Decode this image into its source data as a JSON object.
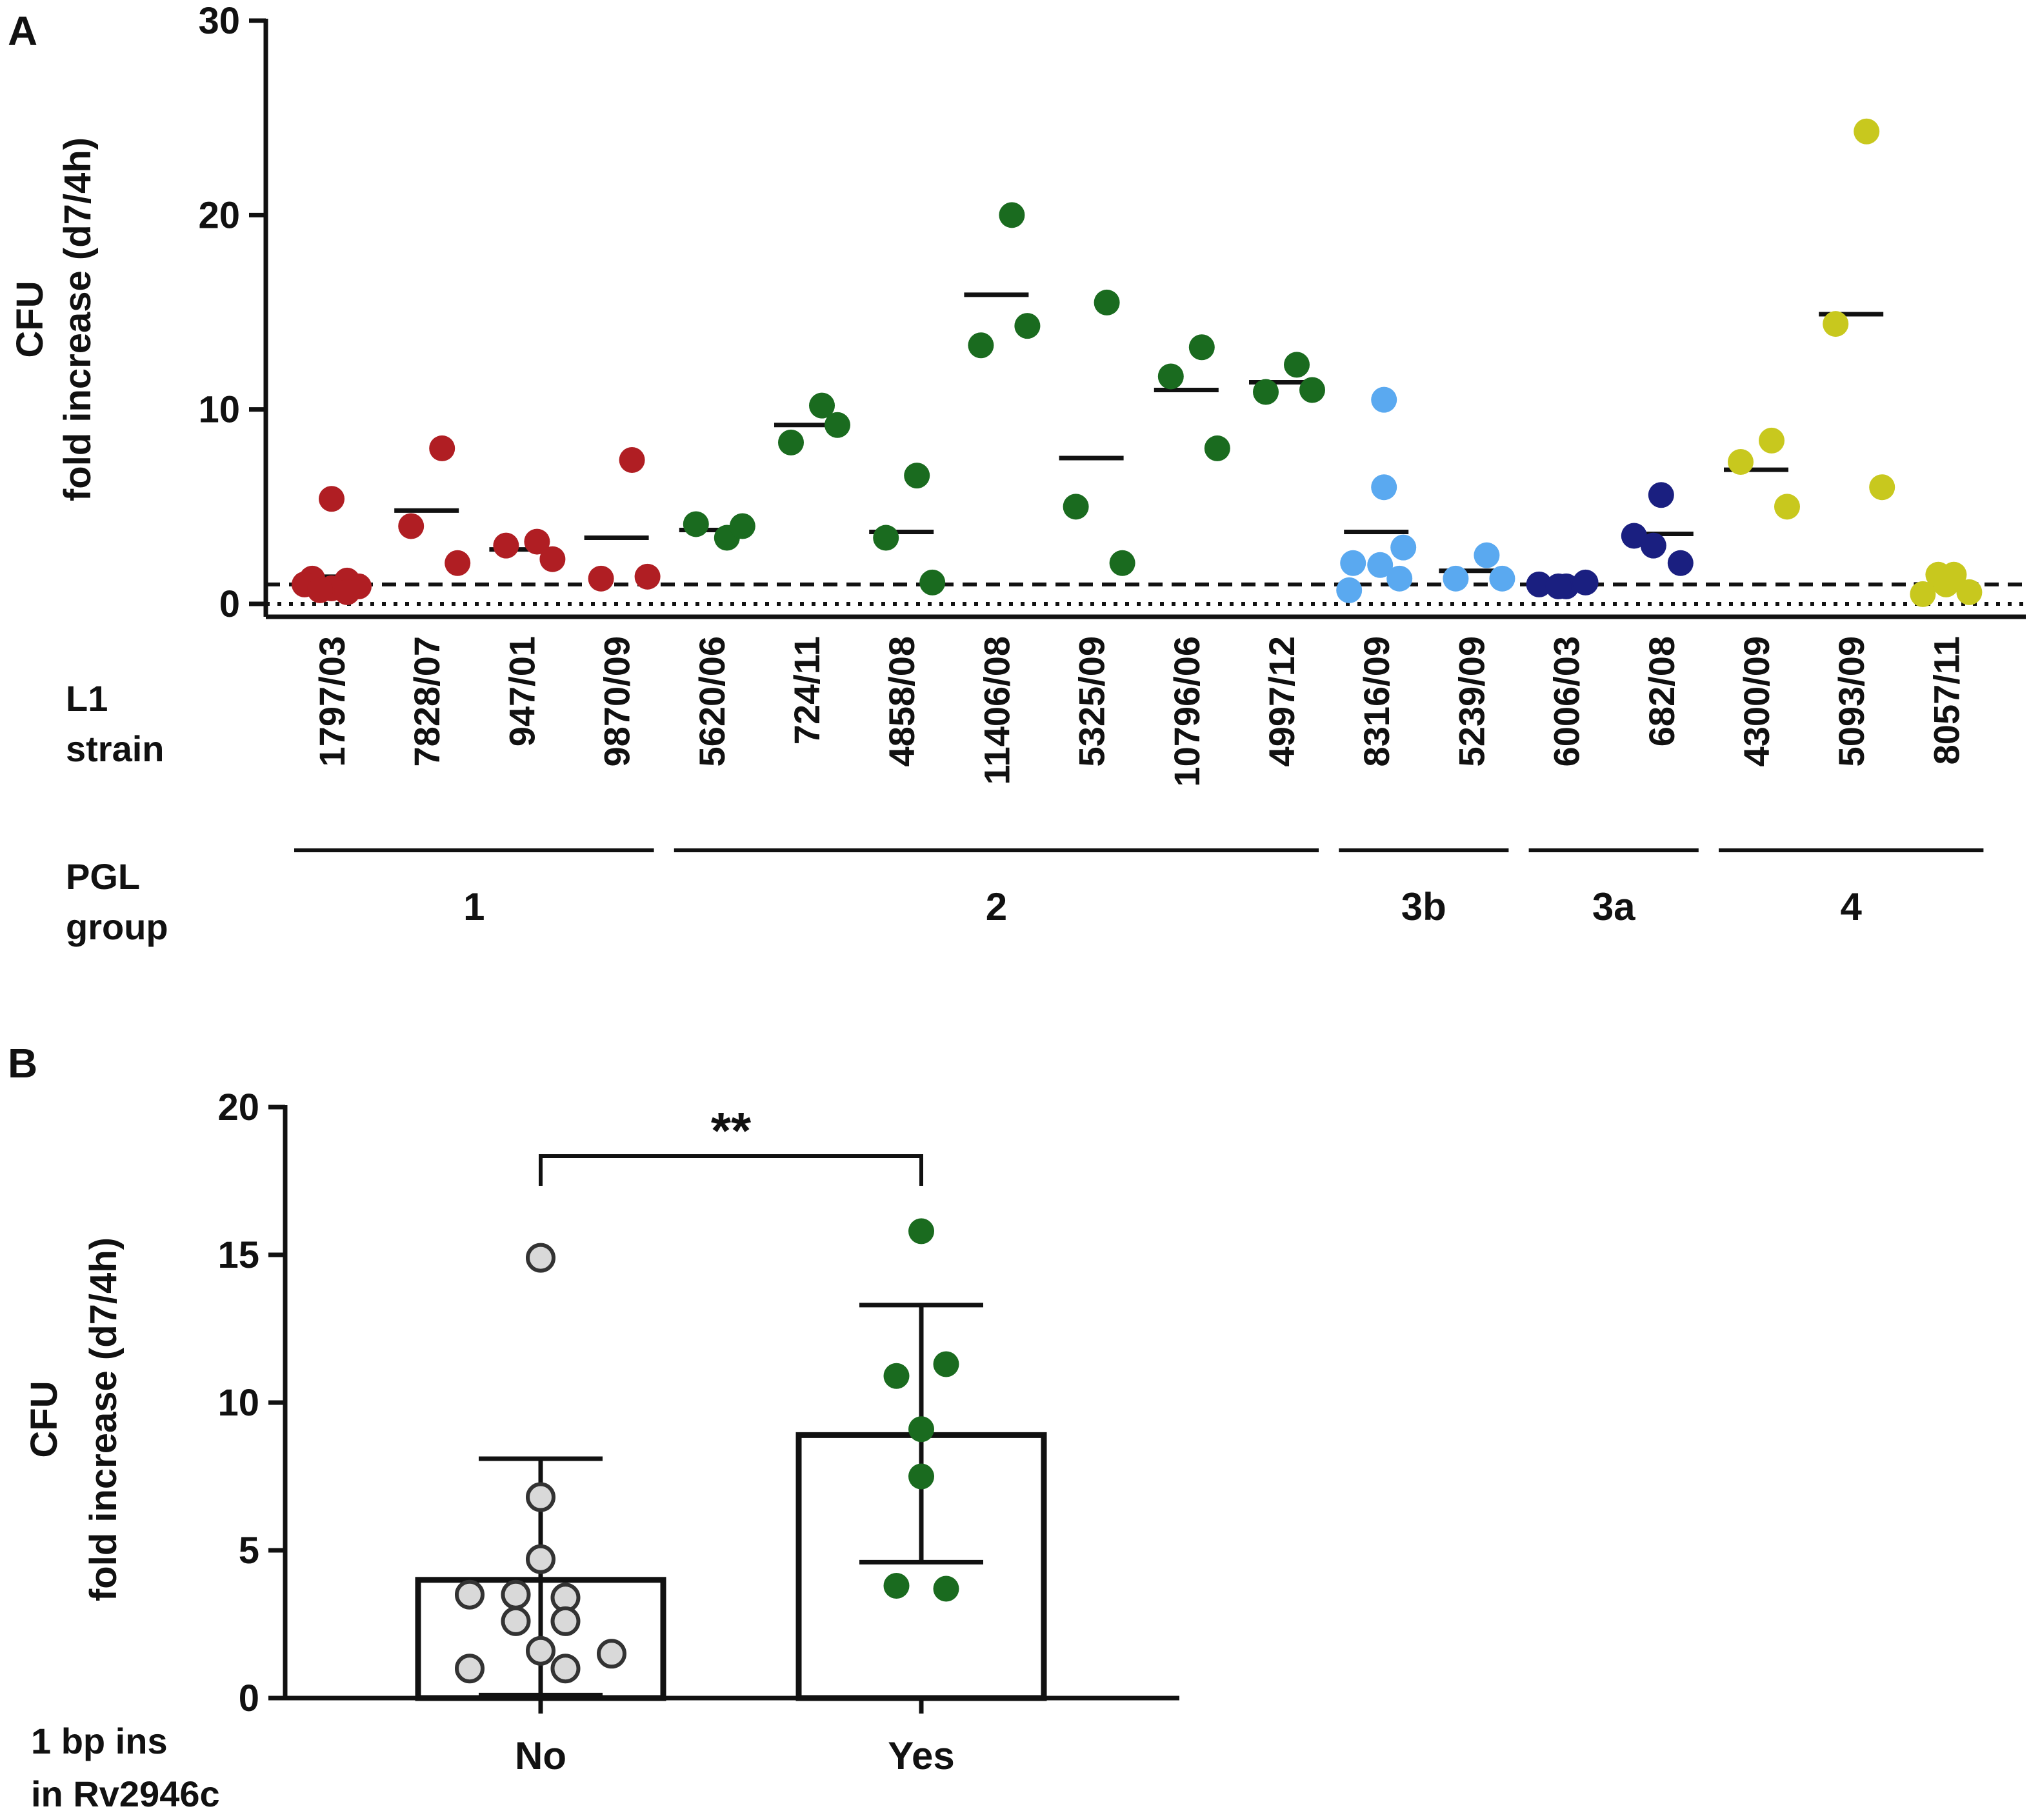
{
  "panel_a": {
    "letter": "A"
  },
  "panel_b": {
    "letter": "B"
  },
  "chart_data": [
    {
      "type": "scatter",
      "panel": "A",
      "ylabel_line1": "CFU",
      "ylabel_line2": "fold increase (d7/4h)",
      "ylim": [
        0,
        30
      ],
      "yticks": [
        0,
        10,
        20,
        30
      ],
      "reference_lines": [
        1,
        0
      ],
      "strain_label_line1": "L1",
      "strain_label_line2": "strain",
      "group_label_line1": "PGL",
      "group_label_line2": "group",
      "colors": {
        "1": "#b01e23",
        "2": "#1a6b1f",
        "3b": "#5aa9f0",
        "3a": "#1a1f80",
        "4": "#c8c81e"
      },
      "strains": [
        {
          "name": "1797/03",
          "group": "1",
          "values": [
            5.4,
            1.3,
            1.2,
            1.0,
            0.9,
            0.8,
            0.7,
            0.6
          ],
          "mean": 1.4
        },
        {
          "name": "7828/07",
          "group": "1",
          "values": [
            8.0,
            4.0,
            2.1
          ],
          "mean": 4.8
        },
        {
          "name": "947/01",
          "group": "1",
          "values": [
            3.2,
            3.0,
            2.3
          ],
          "mean": 2.8
        },
        {
          "name": "9870/09",
          "group": "1",
          "values": [
            7.4,
            1.3,
            1.4
          ],
          "mean": 3.4
        },
        {
          "name": "5620/06",
          "group": "2",
          "values": [
            3.4,
            4.1,
            4.0
          ],
          "mean": 3.8
        },
        {
          "name": "724/11",
          "group": "2",
          "values": [
            10.2,
            8.3,
            9.2
          ],
          "mean": 9.2
        },
        {
          "name": "4858/08",
          "group": "2",
          "values": [
            6.6,
            3.4,
            1.1
          ],
          "mean": 3.7
        },
        {
          "name": "11406/08",
          "group": "2",
          "values": [
            20.0,
            13.3,
            14.3
          ],
          "mean": 15.9
        },
        {
          "name": "5325/09",
          "group": "2",
          "values": [
            15.5,
            5.0,
            2.1
          ],
          "mean": 7.5
        },
        {
          "name": "10796/06",
          "group": "2",
          "values": [
            13.2,
            11.7,
            8.0
          ],
          "mean": 11.0
        },
        {
          "name": "4997/12",
          "group": "2",
          "values": [
            12.3,
            10.9,
            11.0
          ],
          "mean": 11.4
        },
        {
          "name": "8316/09",
          "group": "3b",
          "values": [
            10.5,
            6.0,
            2.1,
            2.0,
            2.9,
            1.3,
            0.7
          ],
          "mean": 3.7
        },
        {
          "name": "5239/09",
          "group": "3b",
          "values": [
            2.5,
            1.3,
            1.3
          ],
          "mean": 1.7
        },
        {
          "name": "6006/03",
          "group": "3a",
          "values": [
            0.9,
            1.0,
            1.1,
            0.9
          ],
          "mean": 1.0
        },
        {
          "name": "682/08",
          "group": "3a",
          "values": [
            5.6,
            3.5,
            2.1,
            3.0
          ],
          "mean": 3.6
        },
        {
          "name": "4300/09",
          "group": "4",
          "values": [
            8.4,
            7.3,
            5.0
          ],
          "mean": 6.9
        },
        {
          "name": "5093/09",
          "group": "4",
          "values": [
            24.3,
            14.4,
            6.0
          ],
          "mean": 14.9
        },
        {
          "name": "8057/11",
          "group": "4",
          "values": [
            1.5,
            1.5,
            0.6,
            0.5,
            1.0
          ],
          "mean": 1.0
        }
      ],
      "groups": [
        {
          "label": "1",
          "first": 0,
          "last": 3
        },
        {
          "label": "2",
          "first": 4,
          "last": 10
        },
        {
          "label": "3b",
          "first": 11,
          "last": 12
        },
        {
          "label": "3a",
          "first": 13,
          "last": 14
        },
        {
          "label": "4",
          "first": 15,
          "last": 17
        }
      ]
    },
    {
      "type": "bar",
      "panel": "B",
      "ylabel_line1": "CFU",
      "ylabel_line2": "fold increase (d7/4h)",
      "ylim": [
        0,
        20
      ],
      "yticks": [
        0,
        5,
        10,
        15,
        20
      ],
      "xlabel_line1": "1 bp ins",
      "xlabel_line2": "in Rv2946c",
      "categories": [
        "No",
        "Yes"
      ],
      "means": [
        4.0,
        8.9
      ],
      "error_upper": [
        8.1,
        13.3
      ],
      "error_lower": [
        0.1,
        4.6
      ],
      "point_colors": [
        "#d9d9d9",
        "#1a6b1f"
      ],
      "points": [
        [
          {
            "y": 14.9,
            "dx": 0
          },
          {
            "y": 6.8,
            "dx": 0
          },
          {
            "y": 4.7,
            "dx": 0
          },
          {
            "y": 3.5,
            "dx": -1
          },
          {
            "y": 3.5,
            "dx": -0.35
          },
          {
            "y": 3.4,
            "dx": 0.35
          },
          {
            "y": 2.6,
            "dx": -0.35
          },
          {
            "y": 2.6,
            "dx": 0.35
          },
          {
            "y": 1.6,
            "dx": 0
          },
          {
            "y": 1.5,
            "dx": 1
          },
          {
            "y": 1.0,
            "dx": -1
          },
          {
            "y": 1.0,
            "dx": 0.35
          }
        ],
        [
          {
            "y": 15.8,
            "dx": 0
          },
          {
            "y": 11.3,
            "dx": 0.35
          },
          {
            "y": 10.9,
            "dx": -0.35
          },
          {
            "y": 9.1,
            "dx": 0
          },
          {
            "y": 7.5,
            "dx": 0
          },
          {
            "y": 3.8,
            "dx": -0.35
          },
          {
            "y": 3.7,
            "dx": 0.35
          }
        ]
      ],
      "significance": "**"
    }
  ]
}
